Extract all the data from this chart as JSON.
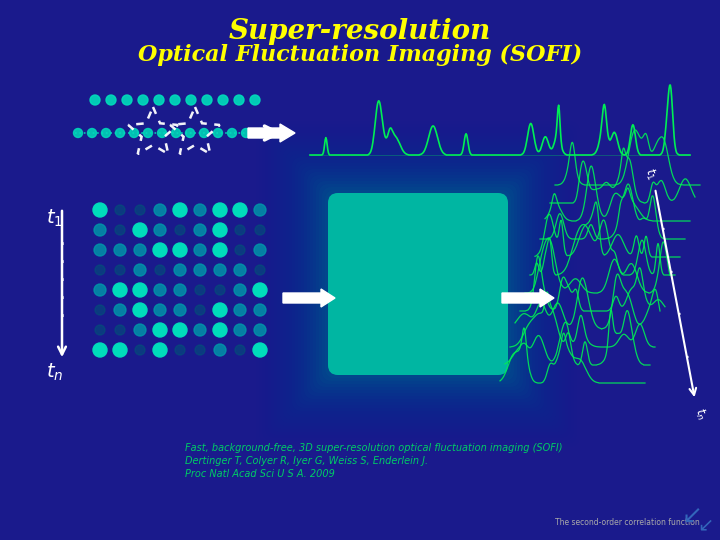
{
  "title_line1": "Super-resolution",
  "title_line2": "Optical Fluctuation Imaging (SOFI)",
  "title_color": "#FFFF00",
  "bg_color": "#1a1a8c",
  "dot_color_bright": "#00DDBB",
  "dot_color_mid": "#0099AA",
  "dot_color_dim": "#005577",
  "green_line_color": "#00EE55",
  "arrow_color": "#FFFFFF",
  "ref_text": "Fast, background-free, 3D super-resolution optical fluctuation imaging (SOFI)",
  "ref_text2": "Dertinger T, Colyer R, Iyer G, Weiss S, Enderlein J.",
  "ref_text3": "Proc Natl Acad Sci U S A. 2009",
  "bottom_text": "The second-order correlation function",
  "text_color_ref": "#00CC66"
}
